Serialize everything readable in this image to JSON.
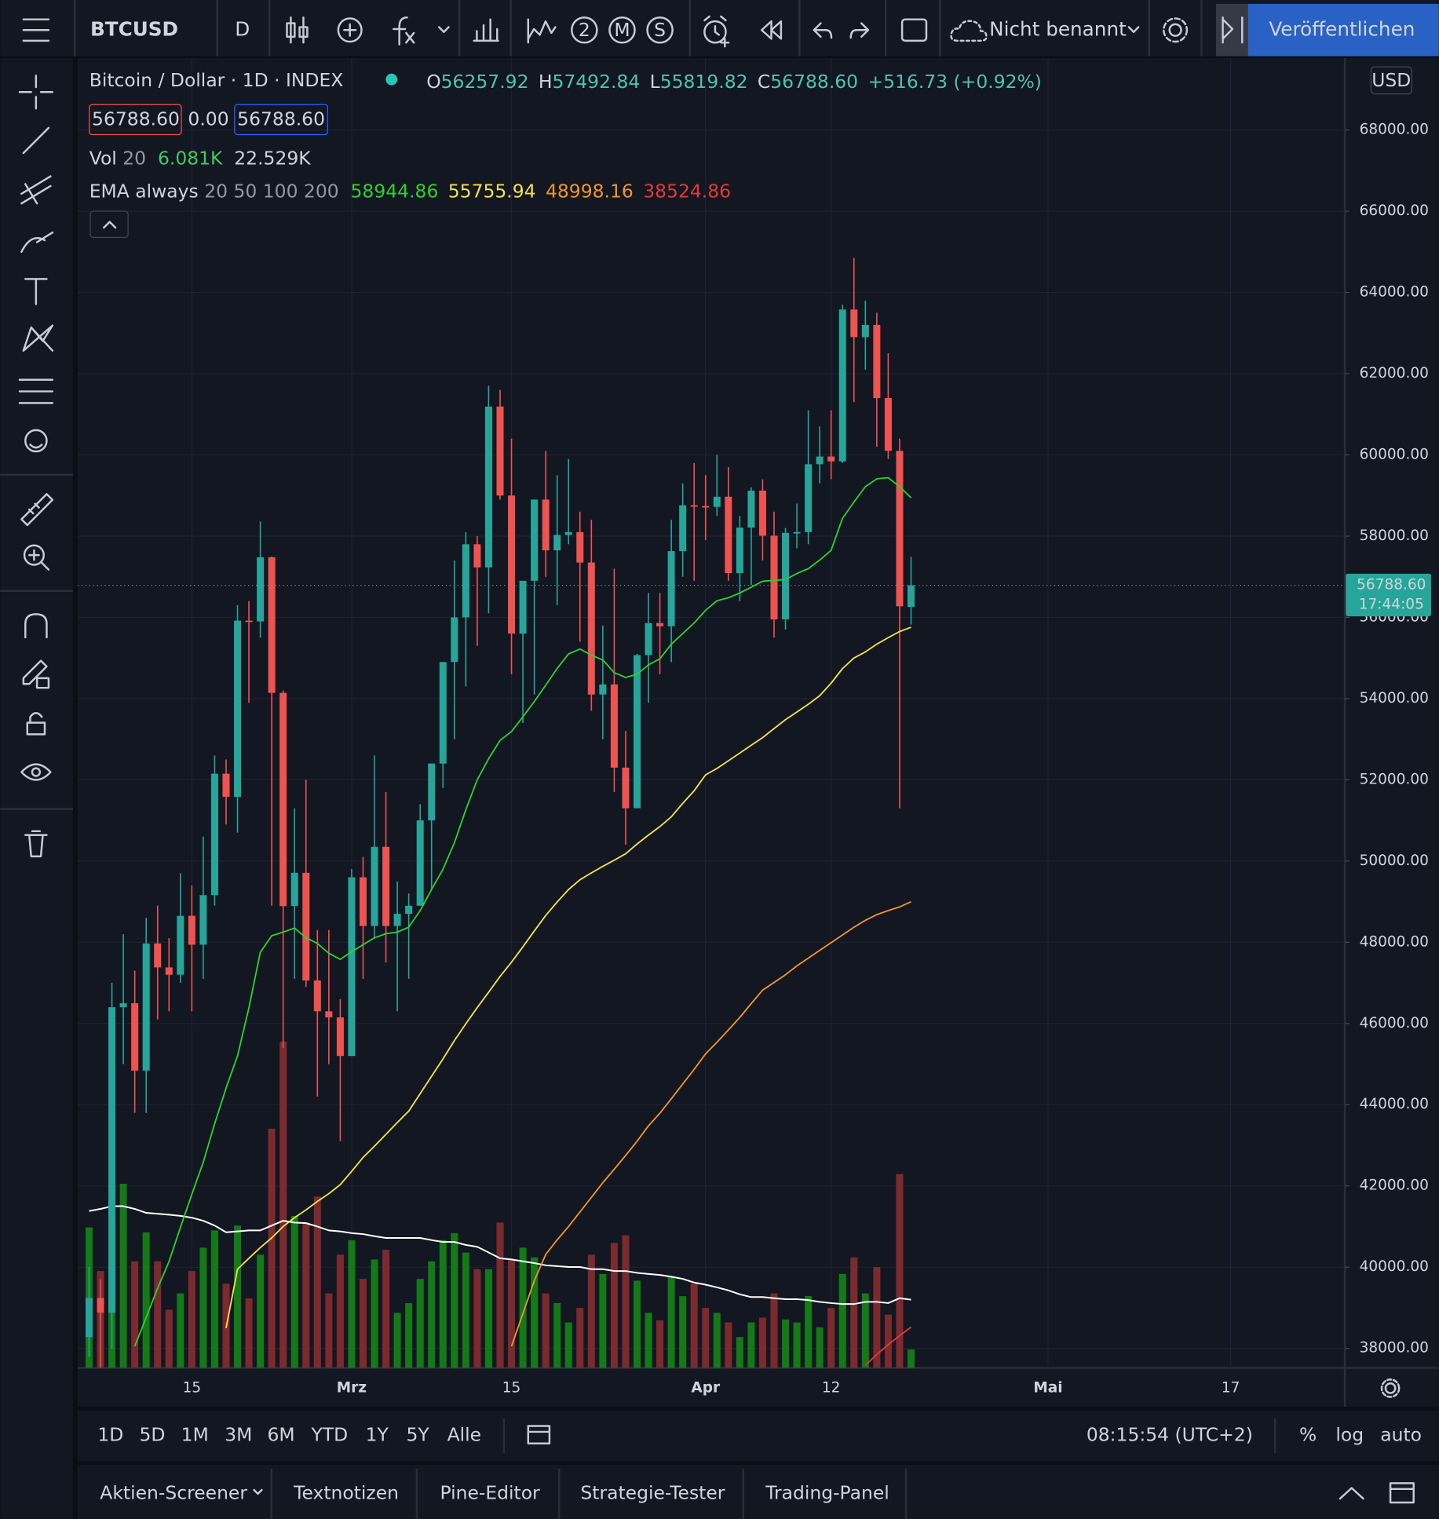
{
  "toolbar": {
    "symbol": "BTCUSD",
    "interval": "D",
    "indicator_badges": [
      "2",
      "M",
      "S"
    ],
    "layout_name": "Nicht benannt",
    "publish": "Veröffentlichen"
  },
  "legend": {
    "title": "Bitcoin / Dollar · 1D · INDEX",
    "ohlc": [
      {
        "label": "O",
        "value": "56257.92"
      },
      {
        "label": "H",
        "value": "57492.84"
      },
      {
        "label": "L",
        "value": "55819.82"
      },
      {
        "label": "C",
        "value": "56788.60"
      }
    ],
    "change": "+516.73 (+0.92%)",
    "bid": "56788.60",
    "spread": "0.00",
    "ask": "56788.60",
    "volume": {
      "label": "Vol",
      "length": "20",
      "values": [
        "6.081K",
        "22.529K"
      ]
    },
    "ema": {
      "label": "EMA always",
      "lengths": "20 50 100 200",
      "values": [
        "58944.86",
        "55755.94",
        "48998.16",
        "38524.86"
      ]
    }
  },
  "currency": "USD",
  "price_label": {
    "price": "56788.60",
    "countdown": "17:44:05"
  },
  "bottom_bar": {
    "ranges": [
      "1D",
      "5D",
      "1M",
      "3M",
      "6M",
      "YTD",
      "1Y",
      "5Y",
      "Alle"
    ],
    "clock": "08:15:54 (UTC+2)",
    "percent": "%",
    "log": "log",
    "auto": "auto"
  },
  "tabs": [
    "Aktien-Screener",
    "Textnotizen",
    "Pine-Editor",
    "Strategie-Tester",
    "Trading-Panel"
  ],
  "chart_data": {
    "type": "candlestick",
    "up_color": "#26a69a",
    "down_color": "#ef5350",
    "volume_up_color": "#137a17",
    "volume_down_color": "#7c2a2e",
    "volume_ma_color": "#ffffff",
    "open": [
      38280,
      39240,
      38880,
      46400,
      46500,
      44840,
      47970,
      47380,
      47200,
      48650,
      47940,
      49160,
      52150,
      51580,
      55920,
      55900,
      57480,
      54140,
      48890,
      49710,
      47060,
      46300,
      46150,
      45200,
      49600,
      48400,
      50350,
      48400,
      48700,
      48900,
      51000,
      52400,
      54900,
      56000,
      57800,
      57230,
      61190,
      59000,
      55600,
      56900,
      58900,
      57650,
      58030,
      58100,
      57350,
      54100,
      54350,
      52300,
      51300,
      55070,
      55860,
      55780,
      57630,
      58760,
      58740,
      58720,
      58970,
      57090,
      58210,
      59120,
      58010,
      55950,
      58080,
      58100,
      59770,
      59960,
      59840,
      63580,
      62900,
      63200,
      61400,
      60100,
      56257.92
    ],
    "high": [
      40000,
      39700,
      47000,
      48200,
      47300,
      48600,
      48900,
      48100,
      49700,
      49400,
      50600,
      52600,
      52500,
      56300,
      56400,
      58360,
      57500,
      54200,
      51300,
      52000,
      48300,
      48300,
      46600,
      49800,
      50100,
      52600,
      51700,
      49500,
      49200,
      51400,
      52400,
      54900,
      57400,
      58100,
      58000,
      61700,
      61600,
      60400,
      56900,
      58900,
      60100,
      59500,
      59900,
      58600,
      58400,
      55800,
      57200,
      53200,
      55100,
      56600,
      56600,
      58400,
      59300,
      59800,
      59500,
      60000,
      59700,
      58500,
      59200,
      59400,
      58600,
      58200,
      58800,
      61100,
      60700,
      61100,
      63700,
      64850,
      63800,
      63500,
      62500,
      60400,
      57492.84
    ],
    "low": [
      37800,
      37400,
      37990,
      45000,
      43800,
      43800,
      46100,
      46300,
      47000,
      46300,
      47100,
      48900,
      50900,
      50700,
      53900,
      55500,
      48900,
      45400,
      47100,
      46900,
      44200,
      45000,
      43100,
      45200,
      47100,
      48100,
      47500,
      46300,
      47100,
      48900,
      49300,
      51800,
      53000,
      54300,
      55300,
      56100,
      58900,
      54600,
      53400,
      54100,
      57000,
      56300,
      57800,
      55400,
      53700,
      53000,
      51700,
      50400,
      51300,
      53900,
      54600,
      54900,
      57000,
      56900,
      57900,
      58500,
      56900,
      56400,
      56800,
      57400,
      55500,
      55700,
      57700,
      57800,
      59300,
      59400,
      59800,
      61300,
      62100,
      60200,
      59900,
      51300,
      55819.82
    ],
    "close": [
      39240,
      38880,
      46400,
      46500,
      44840,
      47970,
      47380,
      47200,
      48650,
      47940,
      49160,
      52150,
      51580,
      55920,
      55900,
      57480,
      54140,
      48890,
      49710,
      47060,
      46300,
      46150,
      45200,
      49600,
      48400,
      50350,
      48400,
      48700,
      48900,
      51000,
      52400,
      54900,
      56000,
      57800,
      57230,
      61190,
      59000,
      55600,
      56900,
      58900,
      57650,
      58030,
      58100,
      57350,
      54100,
      54350,
      52300,
      51300,
      55070,
      55860,
      55780,
      57630,
      58760,
      58740,
      58720,
      58970,
      57090,
      58210,
      59120,
      58010,
      55950,
      58080,
      58100,
      59770,
      59960,
      59840,
      63580,
      62900,
      63200,
      61400,
      60100,
      56271.87,
      56788.6
    ],
    "volume": {
      "values": [
        46.4,
        32.0,
        83.2,
        60.8,
        35.2,
        44.8,
        35.2,
        19.2,
        24.6,
        32.0,
        39.7,
        45.4,
        27.8,
        47.0,
        23.0,
        37.4,
        79.0,
        107.8,
        50.2,
        48.0,
        56.6,
        24.6,
        37.4,
        42.2,
        29.4,
        35.8,
        39.0,
        18.2,
        21.4,
        29.4,
        35.2,
        42.2,
        44.5,
        38.1,
        32.6,
        32.6,
        48.0,
        35.8,
        39.7,
        36.5,
        24.6,
        21.4,
        15.0,
        19.8,
        37.4,
        31.0,
        41.3,
        43.8,
        28.8,
        18.2,
        15.7,
        30.1,
        23.7,
        27.8,
        19.8,
        18.2,
        15.0,
        10.2,
        15.0,
        16.6,
        24.6,
        16.0,
        15.0,
        23.7,
        13.4,
        19.8,
        31.0,
        36.5,
        24.6,
        33.3,
        17.6,
        64.0,
        6.081
      ],
      "ma": [
        51.8,
        52.5,
        53.4,
        53.4,
        52.5,
        51.2,
        50.9,
        50.6,
        50.2,
        49.6,
        48.6,
        47.0,
        44.8,
        45.1,
        45.4,
        45.4,
        47.0,
        48.6,
        48.0,
        47.8,
        46.7,
        45.4,
        45.1,
        44.5,
        44.2,
        43.5,
        42.9,
        42.9,
        42.9,
        42.9,
        42.2,
        41.6,
        41.6,
        40.6,
        40.0,
        38.1,
        36.2,
        35.8,
        35.2,
        34.6,
        33.9,
        33.6,
        33.3,
        33.3,
        32.6,
        32.6,
        32.0,
        32.0,
        31.4,
        31.0,
        30.7,
        30.1,
        29.4,
        28.2,
        27.5,
        26.6,
        25.6,
        24.3,
        23.4,
        23.4,
        23.0,
        22.7,
        22.7,
        22.4,
        21.8,
        21.4,
        21.1,
        21.1,
        21.8,
        21.8,
        21.4,
        23.0,
        22.529
      ]
    },
    "lines": [
      {
        "color": "#2ed12e",
        "values": [
          null,
          null,
          null,
          null,
          38050,
          38760,
          39480,
          40140,
          40980,
          41790,
          42580,
          43530,
          44410,
          45200,
          46390,
          47750,
          48160,
          48250,
          48350,
          48110,
          47970,
          47730,
          47580,
          47770,
          47940,
          48110,
          48210,
          48250,
          48370,
          48780,
          49300,
          49800,
          50450,
          51260,
          52000,
          52520,
          52970,
          53190,
          53550,
          53930,
          54330,
          54740,
          55100,
          55220,
          55070,
          54950,
          54640,
          54520,
          54600,
          54830,
          54980,
          55340,
          55600,
          55860,
          56170,
          56410,
          56480,
          56600,
          56740,
          56890,
          56910,
          56930,
          57080,
          57200,
          57410,
          57650,
          58440,
          58840,
          59220,
          59410,
          59440,
          59220,
          58944.86
        ]
      },
      {
        "color": "#f2e14c",
        "values": [
          null,
          null,
          null,
          null,
          null,
          null,
          null,
          null,
          null,
          null,
          null,
          null,
          38500,
          39950,
          40220,
          40480,
          40720,
          41000,
          41220,
          41410,
          41620,
          41810,
          42030,
          42360,
          42700,
          42980,
          43270,
          43560,
          43840,
          44270,
          44700,
          45130,
          45580,
          45990,
          46390,
          46770,
          47160,
          47510,
          47890,
          48280,
          48660,
          48990,
          49300,
          49540,
          49710,
          49870,
          50020,
          50180,
          50420,
          50640,
          50850,
          51090,
          51420,
          51730,
          52120,
          52280,
          52470,
          52660,
          52850,
          53040,
          53260,
          53480,
          53670,
          53860,
          54070,
          54380,
          54740,
          55000,
          55150,
          55340,
          55500,
          55650,
          55755.94
        ]
      },
      {
        "color": "#f0952a",
        "values": [
          null,
          null,
          null,
          null,
          null,
          null,
          null,
          null,
          null,
          null,
          null,
          null,
          null,
          null,
          null,
          null,
          null,
          null,
          null,
          null,
          null,
          null,
          null,
          null,
          null,
          null,
          null,
          null,
          null,
          null,
          null,
          null,
          null,
          null,
          null,
          null,
          null,
          38050,
          38860,
          39670,
          40310,
          40670,
          41000,
          41360,
          41720,
          42080,
          42410,
          42750,
          43100,
          43480,
          43790,
          44150,
          44510,
          44870,
          45250,
          45540,
          45840,
          46150,
          46490,
          46820,
          47010,
          47200,
          47420,
          47610,
          47800,
          47990,
          48180,
          48370,
          48540,
          48680,
          48780,
          48870,
          48998.16
        ]
      },
      {
        "color": "#e53935",
        "values": [
          null,
          null,
          null,
          null,
          null,
          null,
          null,
          null,
          null,
          null,
          null,
          null,
          null,
          null,
          null,
          null,
          null,
          null,
          null,
          null,
          null,
          null,
          null,
          null,
          null,
          null,
          null,
          null,
          null,
          null,
          null,
          null,
          null,
          null,
          null,
          null,
          null,
          null,
          null,
          null,
          null,
          null,
          null,
          null,
          null,
          null,
          null,
          null,
          null,
          null,
          null,
          null,
          null,
          null,
          null,
          null,
          null,
          null,
          null,
          null,
          null,
          null,
          null,
          null,
          null,
          null,
          null,
          null,
          37590,
          37850,
          38090,
          38310,
          38524.86
        ]
      }
    ],
    "xlim": [
      -1,
      110
    ],
    "xticks": [
      {
        "value": 9,
        "label": "15"
      },
      {
        "value": 23,
        "label": "Mrz"
      },
      {
        "value": 37,
        "label": "15"
      },
      {
        "value": 54,
        "label": "Apr"
      },
      {
        "value": 65,
        "label": "12"
      },
      {
        "value": 84,
        "label": "Mai"
      },
      {
        "value": 100,
        "label": "17"
      }
    ],
    "ylim": [
      37520,
      69770
    ],
    "yticks": [
      {
        "value": 38000,
        "label": "38000.00"
      },
      {
        "value": 40000,
        "label": "40000.00"
      },
      {
        "value": 42000,
        "label": "42000.00"
      },
      {
        "value": 44000,
        "label": "44000.00"
      },
      {
        "value": 46000,
        "label": "46000.00"
      },
      {
        "value": 48000,
        "label": "48000.00"
      },
      {
        "value": 50000,
        "label": "50000.00"
      },
      {
        "value": 52000,
        "label": "52000.00"
      },
      {
        "value": 54000,
        "label": "54000.00"
      },
      {
        "value": 56000,
        "label": "56000.00"
      },
      {
        "value": 58000,
        "label": "58000.00"
      },
      {
        "value": 60000,
        "label": "60000.00"
      },
      {
        "value": 62000,
        "label": "62000.00"
      },
      {
        "value": 64000,
        "label": "64000.00"
      },
      {
        "value": 66000,
        "label": "66000.00"
      },
      {
        "value": 68000,
        "label": "68000.00"
      }
    ],
    "grid": true,
    "log_scale": false
  }
}
